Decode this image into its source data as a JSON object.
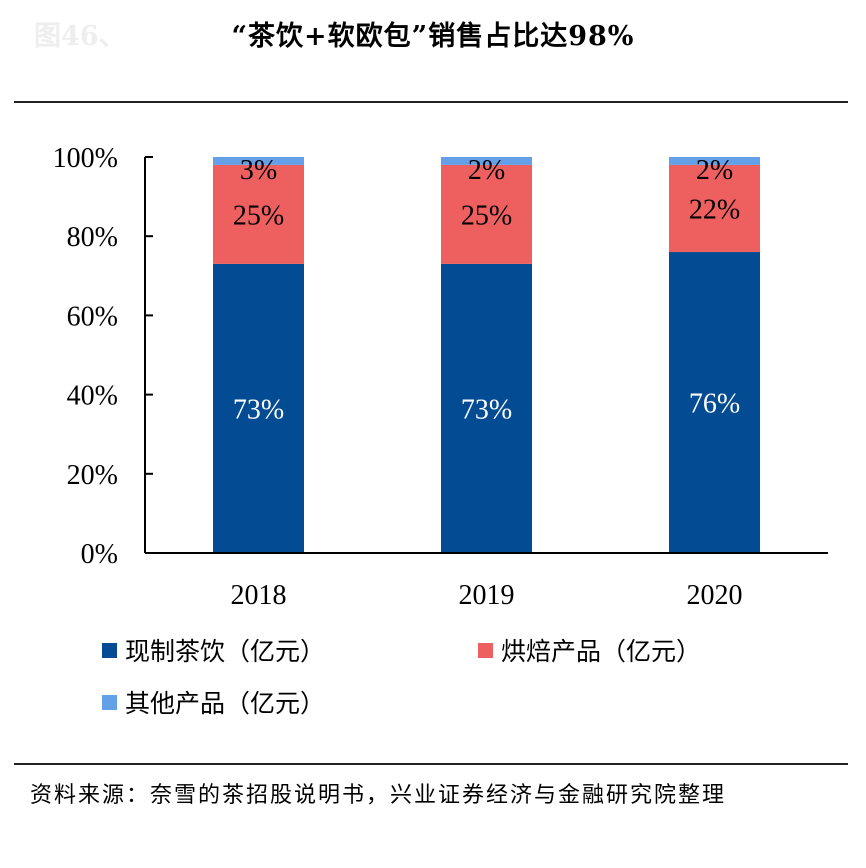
{
  "figure_label": "图46、",
  "chart_data": {
    "type": "bar",
    "stacked": true,
    "title": "“茶饮+软欧包”销售占比达98%",
    "categories": [
      "2018",
      "2019",
      "2020"
    ],
    "series": [
      {
        "name": "现制茶饮（亿元）",
        "color": "#034B93",
        "values": [
          73,
          73,
          76
        ],
        "labels": [
          "73%",
          "73%",
          "76%"
        ]
      },
      {
        "name": "烘焙产品（亿元）",
        "color": "#EE5F5F",
        "values": [
          25,
          25,
          22
        ],
        "labels": [
          "25%",
          "25%",
          "22%"
        ]
      },
      {
        "name": "其他产品（亿元）",
        "color": "#63A0E8",
        "values": [
          3,
          2,
          2
        ],
        "labels": [
          "3%",
          "2%",
          "2%"
        ]
      }
    ],
    "ylim": [
      0,
      100
    ],
    "yticks": [
      "0%",
      "20%",
      "40%",
      "60%",
      "80%",
      "100%"
    ],
    "xlabel": "",
    "ylabel": "",
    "grid": false,
    "legend": "bottom"
  },
  "source": "资料来源：奈雪的茶招股说明书，兴业证券经济与金融研究院整理"
}
